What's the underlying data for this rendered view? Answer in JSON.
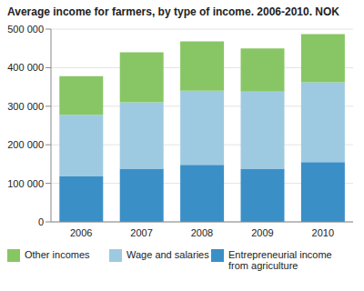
{
  "chart_data": {
    "type": "bar",
    "title": "Average income for farmers, by type of income. 2006-2010. NOK",
    "categories": [
      "2006",
      "2007",
      "2008",
      "2009",
      "2010"
    ],
    "series": [
      {
        "name": "Other incomes",
        "color": "#88c665",
        "values": [
          100000,
          130000,
          128000,
          112000,
          125000
        ]
      },
      {
        "name": "Wage and salaries",
        "color": "#9ecae1",
        "values": [
          160000,
          172000,
          192000,
          200000,
          207000
        ]
      },
      {
        "name": "Entrepreneurial income from agriculture",
        "color": "#3a8fc7",
        "values": [
          118000,
          138000,
          148000,
          138000,
          155000
        ]
      }
    ],
    "stacked": true,
    "ylim": [
      0,
      500000
    ],
    "yticks": [
      0,
      {
        "value": 100000,
        "label": "100 000"
      },
      {
        "value": 200000,
        "label": "200 000"
      },
      {
        "value": 300000,
        "label": "300 000"
      },
      {
        "value": 400000,
        "label": "400 000"
      },
      {
        "value": 500000,
        "label": "500 000"
      }
    ],
    "legend": "bottom",
    "grid": true
  }
}
